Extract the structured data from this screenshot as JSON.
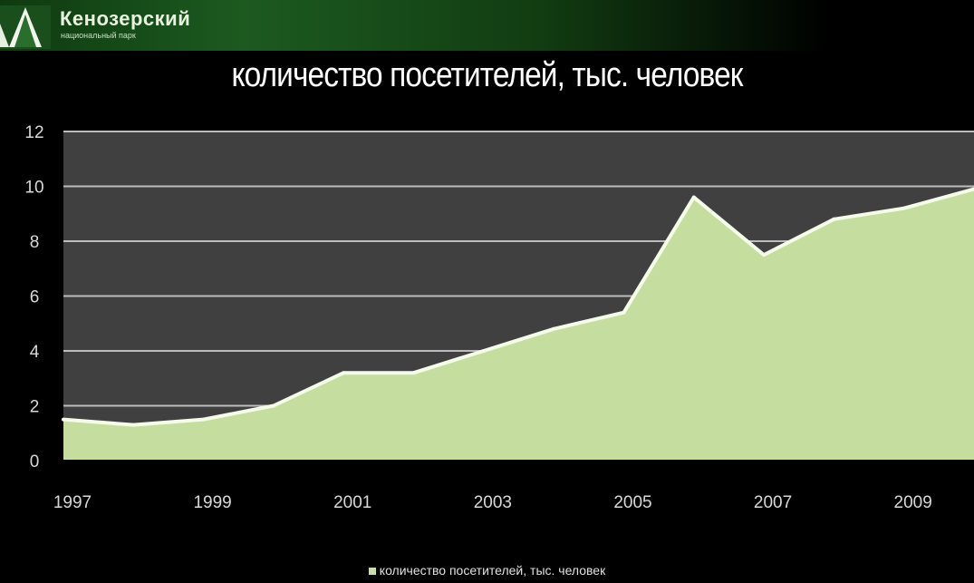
{
  "header": {
    "brand_name": "Кенозерский",
    "brand_sub": "национальный парк"
  },
  "chart_data": {
    "type": "area",
    "title": "количество посетителей, тыс. человек",
    "x": [
      1997,
      1998,
      1999,
      2000,
      2001,
      2002,
      2003,
      2004,
      2005,
      2006,
      2007,
      2008,
      2009,
      2010
    ],
    "series": [
      {
        "name": "количество посетителей, тыс. человек",
        "values": [
          1.5,
          1.3,
          1.5,
          2.0,
          3.2,
          3.2,
          4.0,
          4.8,
          5.4,
          9.6,
          7.5,
          8.8,
          9.2,
          9.9
        ]
      }
    ],
    "x_tick_labels": [
      "1997",
      "1999",
      "2001",
      "2003",
      "2005",
      "2007",
      "2009"
    ],
    "y_tick_labels": [
      "0",
      "2",
      "4",
      "6",
      "8",
      "10",
      "12"
    ],
    "ylim": [
      0,
      12
    ],
    "grid": true,
    "legend": "bottom",
    "colors": {
      "area_fill": "#c5de9f",
      "area_edge": "#f4fbe8",
      "plot_background": "#404040",
      "gridline": "#bdbdbd"
    }
  }
}
